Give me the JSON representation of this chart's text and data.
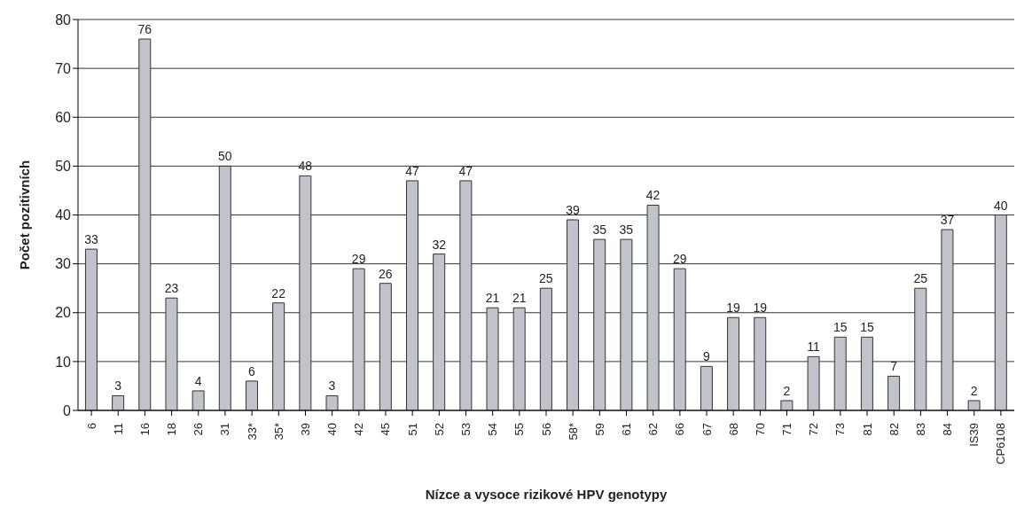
{
  "chart_data": {
    "type": "bar",
    "xlabel": "Nízce a vysoce rizikové HPV genotypy",
    "ylabel": "Počet pozitivních",
    "categories": [
      "6",
      "11",
      "16",
      "18",
      "26",
      "31",
      "33*",
      "35*",
      "39",
      "40",
      "42",
      "45",
      "51",
      "52",
      "53",
      "54",
      "55",
      "56",
      "58*",
      "59",
      "61",
      "62",
      "66",
      "67",
      "68",
      "70",
      "71",
      "72",
      "73",
      "81",
      "82",
      "83",
      "84",
      "IS39",
      "CP6108"
    ],
    "values": [
      33,
      3,
      76,
      23,
      4,
      50,
      6,
      22,
      48,
      3,
      29,
      26,
      47,
      32,
      47,
      21,
      21,
      25,
      39,
      35,
      35,
      42,
      29,
      9,
      19,
      19,
      2,
      11,
      15,
      15,
      7,
      25,
      37,
      2,
      40
    ],
    "color": "#c0c3c9",
    "ylim": [
      0,
      80
    ],
    "yticks": [
      0,
      10,
      20,
      30,
      40,
      50,
      60,
      70,
      80
    ],
    "grid": "y",
    "data_labels": true
  }
}
